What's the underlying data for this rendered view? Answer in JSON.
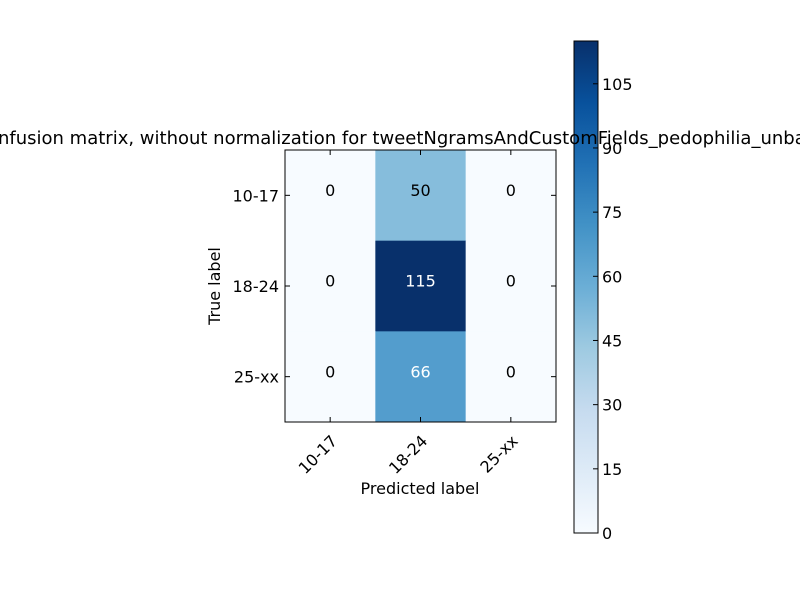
{
  "chart_data": {
    "type": "heatmap",
    "title": "Confusion matrix, without normalization for tweetNgramsAndCustomFields_pedophilia_unbalanced",
    "xlabel": "Predicted label",
    "ylabel": "True label",
    "x_categories": [
      "10-17",
      "18-24",
      "25-xx"
    ],
    "y_categories": [
      "10-17",
      "18-24",
      "25-xx"
    ],
    "matrix": [
      [
        0,
        50,
        0
      ],
      [
        0,
        115,
        0
      ],
      [
        0,
        66,
        0
      ]
    ],
    "cell_labels": [
      [
        "0",
        "50",
        "0"
      ],
      [
        "0",
        "115",
        "0"
      ],
      [
        "0",
        "66",
        "0"
      ]
    ],
    "colormap": "Blues",
    "colormap_low": "#f7fbff",
    "colormap_high": "#08306b",
    "colorbar": {
      "min": 0,
      "max": 115,
      "ticks": [
        0,
        15,
        30,
        45,
        60,
        75,
        90,
        105
      ],
      "tick_labels": [
        "0",
        "15",
        "30",
        "45",
        "60",
        "75",
        "90",
        "105"
      ]
    },
    "text_color_threshold": 57.5,
    "text_color_dark": "#000000",
    "text_color_light": "#ffffff"
  }
}
